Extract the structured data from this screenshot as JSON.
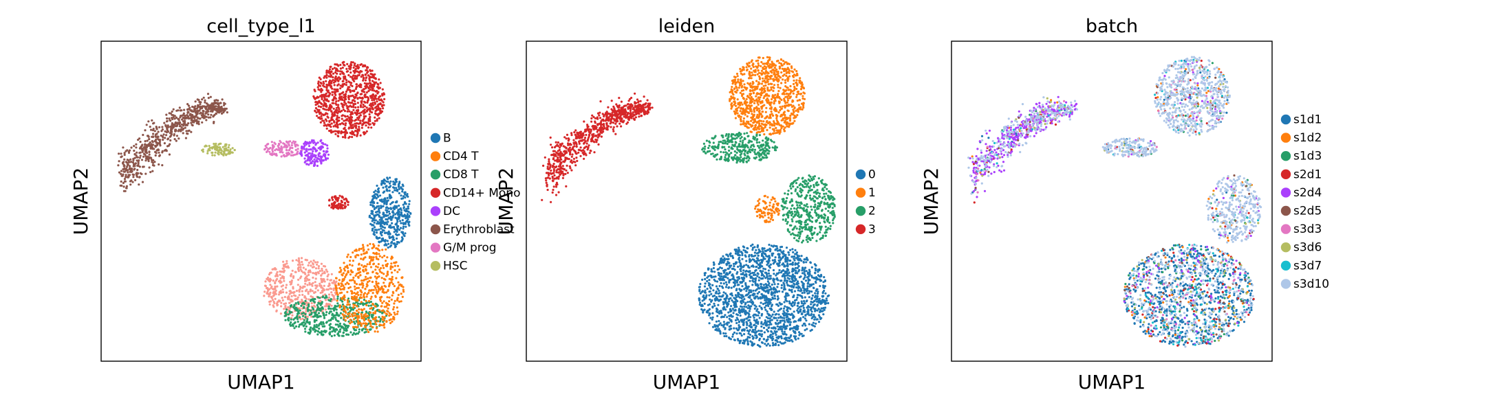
{
  "chart_data": [
    {
      "type": "scatter",
      "title": "cell_type_l1",
      "xlabel": "UMAP1",
      "ylabel": "UMAP2",
      "grid": false,
      "ticks": false,
      "legend_placement": "right",
      "legend": [
        {
          "label": "B",
          "color": "#1f77b4"
        },
        {
          "label": "CD4 T",
          "color": "#ff7f0e"
        },
        {
          "label": "CD8 T",
          "color": "#279e68"
        },
        {
          "label": "CD14+ Mono",
          "color": "#d62728"
        },
        {
          "label": "DC",
          "color": "#aa40fc"
        },
        {
          "label": "Erythroblast",
          "color": "#8c564b"
        },
        {
          "label": "G/M prog",
          "color": "#e377c2"
        },
        {
          "label": "HSC",
          "color": "#b5bd61"
        }
      ]
    },
    {
      "type": "scatter",
      "title": "leiden",
      "xlabel": "UMAP1",
      "ylabel": "UMAP2",
      "grid": false,
      "ticks": false,
      "legend_placement": "right",
      "legend": [
        {
          "label": "0",
          "color": "#1f77b4"
        },
        {
          "label": "1",
          "color": "#ff7f0e"
        },
        {
          "label": "2",
          "color": "#279e68"
        },
        {
          "label": "3",
          "color": "#d62728"
        }
      ]
    },
    {
      "type": "scatter",
      "title": "batch",
      "xlabel": "UMAP1",
      "ylabel": "UMAP2",
      "grid": false,
      "ticks": false,
      "legend_placement": "right",
      "legend": [
        {
          "label": "s1d1",
          "color": "#1f77b4"
        },
        {
          "label": "s1d2",
          "color": "#ff7f0e"
        },
        {
          "label": "s1d3",
          "color": "#279e68"
        },
        {
          "label": "s2d1",
          "color": "#d62728"
        },
        {
          "label": "s2d4",
          "color": "#aa40fc"
        },
        {
          "label": "s2d5",
          "color": "#8c564b"
        },
        {
          "label": "s3d3",
          "color": "#e377c2"
        },
        {
          "label": "s3d6",
          "color": "#b5bd61"
        },
        {
          "label": "s3d7",
          "color": "#17becf"
        },
        {
          "label": "s3d10",
          "color": "#aec7e8"
        }
      ]
    }
  ]
}
